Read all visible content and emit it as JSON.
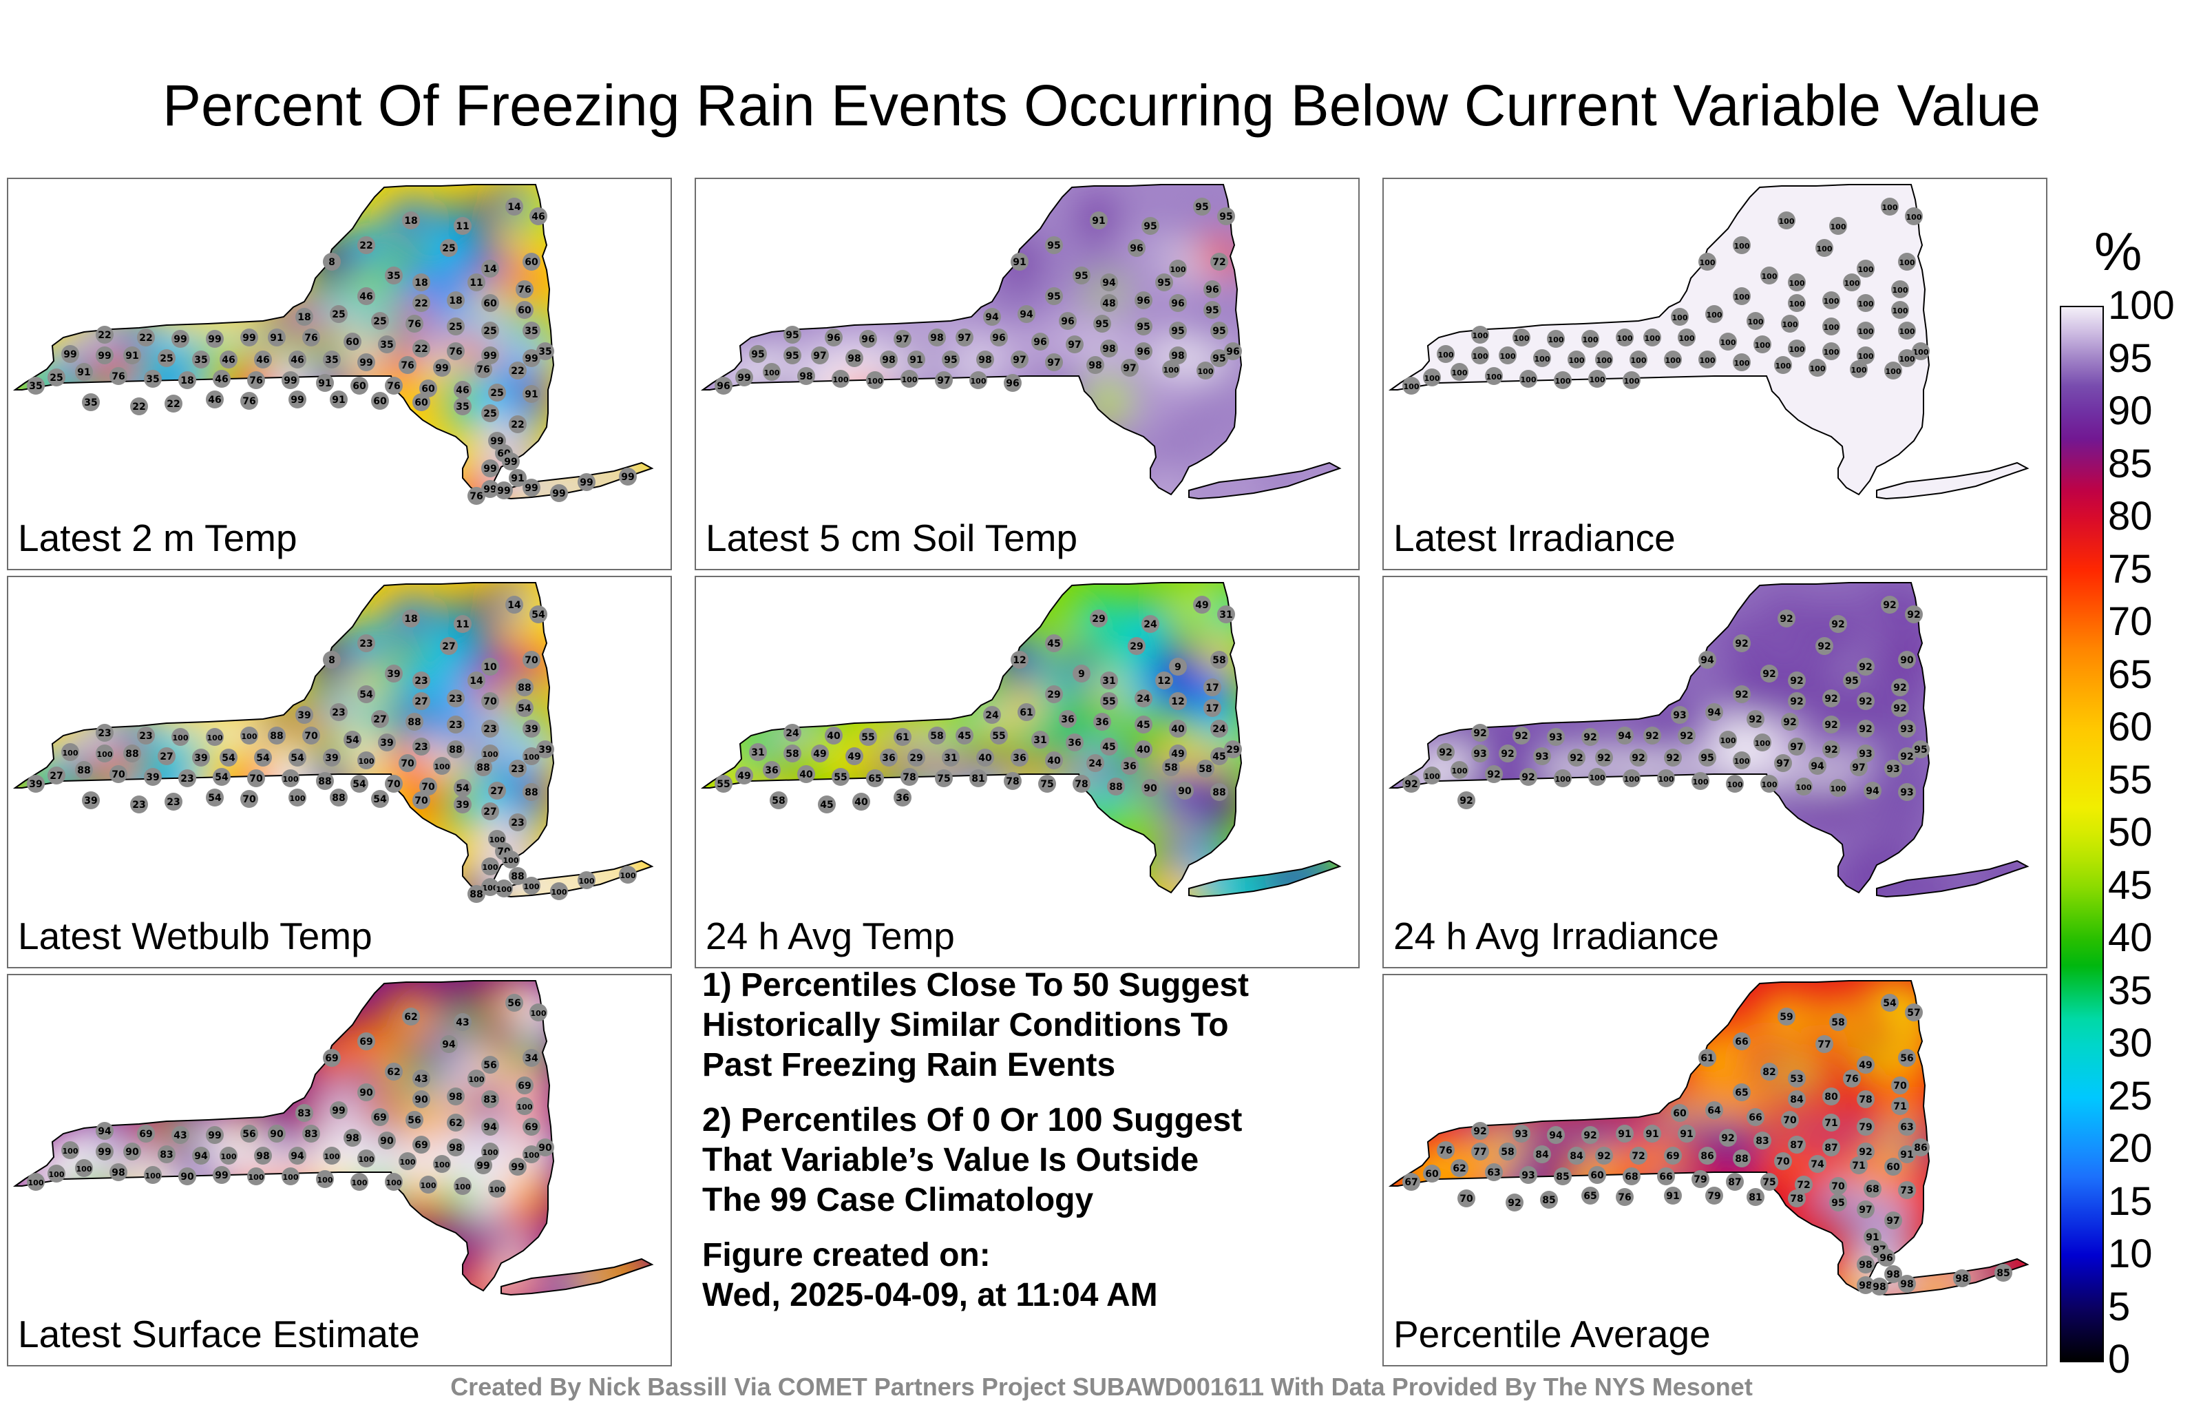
{
  "title": "Percent Of Freezing Rain Events Occurring Below Current Variable Value",
  "colorbar": {
    "unit": "%",
    "ticks": [
      "100",
      "95",
      "90",
      "85",
      "80",
      "75",
      "70",
      "65",
      "60",
      "55",
      "50",
      "45",
      "40",
      "35",
      "30",
      "25",
      "20",
      "15",
      "10",
      "5",
      "0"
    ],
    "colors": [
      "#f3eef8",
      "#c8b4de",
      "#5b2a96",
      "#b5006e",
      "#ff0000",
      "#ff8000",
      "#ffd400",
      "#e0f000",
      "#00b400",
      "#00d0c8",
      "#28aaff",
      "#0000e0",
      "#000000"
    ]
  },
  "panels": [
    {
      "label": "Latest 2 m Temp",
      "stations": [
        "18",
        "11",
        "14",
        "46",
        "25",
        "22",
        "8",
        "14",
        "60",
        "35",
        "18",
        "11",
        "76",
        "46",
        "22",
        "18",
        "60",
        "60",
        "18",
        "25",
        "25",
        "76",
        "25",
        "25",
        "35",
        "35",
        "22",
        "22",
        "99",
        "99",
        "99",
        "91",
        "76",
        "60",
        "35",
        "22",
        "76",
        "99",
        "99",
        "99",
        "99",
        "91",
        "25",
        "35",
        "46",
        "46",
        "46",
        "35",
        "99",
        "76",
        "99",
        "76",
        "22",
        "35",
        "25",
        "91",
        "76",
        "35",
        "18",
        "46",
        "76",
        "99",
        "91",
        "60",
        "76",
        "60",
        "46",
        "25",
        "91",
        "35",
        "22",
        "22",
        "46",
        "76",
        "99",
        "91",
        "60",
        "60",
        "35",
        "25",
        "22",
        "99",
        "60",
        "99",
        "99",
        "91",
        "99",
        "99",
        "99",
        "99",
        "99",
        "99",
        "76"
      ]
    },
    {
      "label": "Latest 5 cm Soil Temp",
      "stations": [
        "91",
        "95",
        "95",
        "95",
        "96",
        "95",
        "91",
        "100",
        "72",
        "95",
        "94",
        "95",
        "96",
        "95",
        "48",
        "96",
        "96",
        "95",
        "94",
        "94",
        "96",
        "95",
        "95",
        "95",
        "95",
        "96",
        "95",
        "96",
        "96",
        "97",
        "98",
        "97",
        "96",
        "96",
        "97",
        "98",
        "96",
        "98",
        "95",
        "95",
        "95",
        "97",
        "98",
        "98",
        "91",
        "95",
        "98",
        "97",
        "97",
        "98",
        "97",
        "100",
        "100",
        "96",
        "99",
        "100",
        "98",
        "100",
        "100",
        "100",
        "97",
        "100",
        "96"
      ]
    },
    {
      "label": "Latest Irradiance",
      "stations": [
        "100",
        "100",
        "100",
        "100",
        "100",
        "100",
        "100",
        "100",
        "100",
        "100",
        "100",
        "100",
        "100",
        "100",
        "100",
        "100",
        "100",
        "100",
        "100",
        "100",
        "100",
        "100",
        "100",
        "100",
        "100",
        "100",
        "100",
        "100",
        "100",
        "100",
        "100",
        "100",
        "100",
        "100",
        "100",
        "100",
        "100",
        "100",
        "100",
        "100",
        "100",
        "100",
        "100",
        "100",
        "100",
        "100",
        "100",
        "100",
        "100",
        "100",
        "100",
        "100",
        "100",
        "100",
        "100",
        "100",
        "100",
        "100",
        "100",
        "100",
        "100"
      ]
    },
    {
      "label": "Latest Wetbulb Temp",
      "stations": [
        "18",
        "11",
        "14",
        "54",
        "27",
        "23",
        "8",
        "10",
        "70",
        "39",
        "23",
        "14",
        "88",
        "54",
        "27",
        "23",
        "70",
        "54",
        "39",
        "23",
        "27",
        "88",
        "23",
        "23",
        "39",
        "39",
        "23",
        "23",
        "100",
        "100",
        "100",
        "88",
        "70",
        "54",
        "39",
        "23",
        "88",
        "100",
        "100",
        "100",
        "100",
        "88",
        "27",
        "39",
        "54",
        "54",
        "54",
        "39",
        "100",
        "70",
        "100",
        "88",
        "23",
        "39",
        "27",
        "88",
        "70",
        "39",
        "23",
        "54",
        "70",
        "100",
        "88",
        "54",
        "70",
        "70",
        "54",
        "27",
        "88",
        "39",
        "23",
        "23",
        "54",
        "70",
        "100",
        "88",
        "54",
        "70",
        "39",
        "27",
        "23",
        "100",
        "70",
        "100",
        "100",
        "88",
        "100",
        "100",
        "100",
        "100",
        "100",
        "100",
        "88"
      ]
    },
    {
      "label": "24 h Avg Temp",
      "stations": [
        "29",
        "24",
        "49",
        "31",
        "29",
        "45",
        "12",
        "9",
        "58",
        "9",
        "31",
        "12",
        "17",
        "29",
        "55",
        "24",
        "12",
        "17",
        "24",
        "61",
        "36",
        "36",
        "45",
        "40",
        "24",
        "29",
        "24",
        "40",
        "55",
        "61",
        "58",
        "45",
        "55",
        "31",
        "36",
        "45",
        "40",
        "49",
        "45",
        "31",
        "58",
        "49",
        "49",
        "36",
        "29",
        "31",
        "40",
        "36",
        "40",
        "24",
        "36",
        "58",
        "58",
        "55",
        "49",
        "36",
        "40",
        "55",
        "65",
        "78",
        "75",
        "81",
        "78",
        "75",
        "78",
        "88",
        "90",
        "90",
        "88",
        "58",
        "45",
        "40",
        "36"
      ]
    },
    {
      "label": "24 h Avg Irradiance",
      "stations": [
        "92",
        "92",
        "92",
        "92",
        "92",
        "92",
        "94",
        "92",
        "90",
        "92",
        "92",
        "95",
        "92",
        "92",
        "92",
        "92",
        "92",
        "92",
        "93",
        "94",
        "92",
        "92",
        "92",
        "92",
        "93",
        "95",
        "92",
        "92",
        "93",
        "92",
        "94",
        "92",
        "92",
        "100",
        "100",
        "97",
        "92",
        "93",
        "92",
        "92",
        "93",
        "92",
        "93",
        "92",
        "92",
        "92",
        "92",
        "95",
        "100",
        "97",
        "94",
        "97",
        "93",
        "92",
        "100",
        "100",
        "92",
        "92",
        "100",
        "100",
        "100",
        "100",
        "100",
        "100",
        "100",
        "100",
        "100",
        "94",
        "93",
        "92"
      ]
    },
    {
      "label": "Latest Surface Estimate",
      "stations": [
        "62",
        "43",
        "56",
        "100",
        "94",
        "69",
        "69",
        "56",
        "34",
        "62",
        "43",
        "100",
        "69",
        "90",
        "90",
        "98",
        "83",
        "100",
        "83",
        "99",
        "69",
        "56",
        "62",
        "94",
        "69",
        "90",
        "94",
        "69",
        "43",
        "99",
        "56",
        "90",
        "83",
        "98",
        "90",
        "69",
        "98",
        "100",
        "100",
        "100",
        "99",
        "90",
        "83",
        "94",
        "100",
        "98",
        "94",
        "100",
        "100",
        "100",
        "100",
        "99",
        "99",
        "100",
        "100",
        "100",
        "98",
        "100",
        "90",
        "99",
        "100",
        "100",
        "100",
        "100",
        "100",
        "100",
        "100",
        "100"
      ]
    },
    {
      "label": "Percentile Average",
      "stations": [
        "59",
        "58",
        "54",
        "57",
        "77",
        "66",
        "61",
        "49",
        "56",
        "82",
        "53",
        "76",
        "70",
        "65",
        "84",
        "80",
        "78",
        "71",
        "60",
        "64",
        "66",
        "70",
        "71",
        "79",
        "63",
        "86",
        "92",
        "93",
        "94",
        "92",
        "91",
        "91",
        "91",
        "92",
        "83",
        "87",
        "87",
        "92",
        "91",
        "76",
        "77",
        "58",
        "84",
        "84",
        "92",
        "72",
        "69",
        "86",
        "88",
        "70",
        "74",
        "71",
        "60",
        "67",
        "60",
        "62",
        "63",
        "93",
        "85",
        "60",
        "68",
        "66",
        "79",
        "87",
        "75",
        "72",
        "70",
        "68",
        "73",
        "70",
        "92",
        "85",
        "65",
        "76",
        "91",
        "79",
        "81",
        "78",
        "95",
        "97",
        "97",
        "91",
        "97",
        "96",
        "98",
        "98",
        "98",
        "98",
        "98",
        "98",
        "85"
      ]
    }
  ],
  "notes": [
    [
      "1) Percentiles Close To 50 Suggest",
      "Historically Similar Conditions To",
      "Past Freezing Rain Events"
    ],
    [
      "2) Percentiles Of 0 Or 100 Suggest",
      "That Variable’s Value Is Outside",
      "The 99 Case Climatology"
    ],
    [
      "Figure created on:",
      "Wed, 2025-04-09, at 11:04 AM"
    ]
  ],
  "credit": "Created By Nick Bassill Via COMET Partners Project SUBAWD001611 With Data Provided By The NYS Mesonet"
}
